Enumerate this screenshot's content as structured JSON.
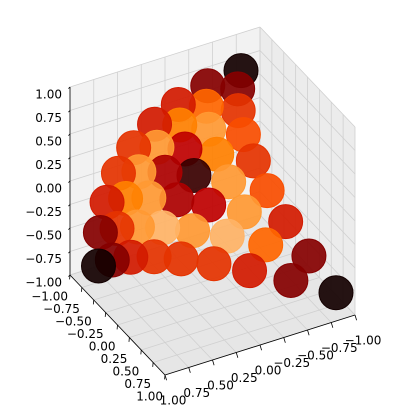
{
  "chart_data": {
    "type": "scatter3d",
    "colormap": "gist_heat",
    "grid": true,
    "x": [
      -0.8,
      -0.64,
      -0.45,
      -0.52,
      -0.31,
      -0.14,
      -0.45,
      -0.21,
      -0.03,
      0.11,
      -0.43,
      -0.17,
      0.04,
      0.21,
      0.33,
      -0.45,
      -0.17,
      0.07,
      0.25,
      0.4,
      0.49,
      -0.52,
      -0.21,
      0.04,
      0.25,
      0.42,
      0.54,
      0.61,
      -0.64,
      -0.31,
      -0.03,
      0.21,
      0.4,
      0.54,
      0.63,
      0.68,
      -0.8,
      -0.45,
      -0.14,
      0.11,
      0.33,
      0.49,
      0.61,
      0.68,
      0.7
    ],
    "y": [
      -1,
      -0.75,
      -1,
      -0.5,
      -0.75,
      -1,
      -0.25,
      -0.5,
      -0.75,
      -1,
      0,
      -0.25,
      -0.5,
      -0.75,
      -1,
      0.25,
      0,
      -0.25,
      -0.5,
      -0.75,
      -1,
      0.5,
      0.25,
      0,
      -0.25,
      -0.5,
      -0.75,
      -1,
      0.75,
      0.5,
      0.25,
      0,
      -0.25,
      -0.5,
      -0.75,
      -1,
      1,
      0.75,
      0.5,
      0.25,
      0,
      -0.25,
      -0.5,
      -0.75,
      -1
    ],
    "z": [
      0.6,
      0.59,
      0.55,
      0.53,
      0.51,
      0.45,
      0.43,
      0.43,
      0.4,
      0.32,
      0.29,
      0.31,
      0.3,
      0.24,
      0.14,
      0.1,
      0.15,
      0.16,
      0.12,
      0.04,
      -0.08,
      -0.12,
      -0.05,
      -0.03,
      -0.04,
      -0.1,
      -0.2,
      -0.35,
      -0.39,
      -0.3,
      -0.25,
      -0.25,
      -0.29,
      -0.37,
      -0.49,
      -0.65,
      -0.7,
      -0.59,
      -0.52,
      -0.5,
      -0.51,
      -0.57,
      -0.67,
      -0.81,
      -1
    ],
    "color_values": [
      0.05,
      0.35,
      0.35,
      0.6,
      0.7,
      0.55,
      0.65,
      0.8,
      0.75,
      0.55,
      0.6,
      0.75,
      0.5,
      0.8,
      0.6,
      0.65,
      0.8,
      0.15,
      0.45,
      0.8,
      0.6,
      0.55,
      0.8,
      0.5,
      0.45,
      0.8,
      0.75,
      0.55,
      0.35,
      0.7,
      0.85,
      0.8,
      0.85,
      0.8,
      0.6,
      0.35,
      0.05,
      0.35,
      0.55,
      0.6,
      0.6,
      0.6,
      0.55,
      0.35,
      0.05
    ],
    "xlim": [
      -1,
      1
    ],
    "ylim": [
      -1,
      1
    ],
    "zlim": [
      -1,
      1
    ],
    "xticks": [
      {
        "value": -1,
        "label": "−1.00"
      },
      {
        "value": -0.75,
        "label": "−0.75"
      },
      {
        "value": -0.5,
        "label": "−0.50"
      },
      {
        "value": -0.25,
        "label": "−0.25"
      },
      {
        "value": 0,
        "label": "0.00"
      },
      {
        "value": 0.25,
        "label": "0.25"
      },
      {
        "value": 0.5,
        "label": "0.50"
      },
      {
        "value": 0.75,
        "label": "0.75"
      },
      {
        "value": 1,
        "label": "1.00"
      }
    ],
    "yticks": [
      {
        "value": -1,
        "label": "−1.00"
      },
      {
        "value": -0.75,
        "label": "−0.75"
      },
      {
        "value": -0.5,
        "label": "−0.50"
      },
      {
        "value": -0.25,
        "label": "−0.25"
      },
      {
        "value": 0,
        "label": "0.00"
      },
      {
        "value": 0.25,
        "label": "0.25"
      },
      {
        "value": 0.5,
        "label": "0.50"
      },
      {
        "value": 0.75,
        "label": "0.75"
      },
      {
        "value": 1,
        "label": "1.00"
      }
    ],
    "zticks": [
      {
        "value": -1,
        "label": "−1.00"
      },
      {
        "value": -0.75,
        "label": "−0.75"
      },
      {
        "value": -0.5,
        "label": "−0.50"
      },
      {
        "value": -0.25,
        "label": "−0.25"
      },
      {
        "value": 0,
        "label": "0.00"
      },
      {
        "value": 0.25,
        "label": "0.25"
      },
      {
        "value": 0.5,
        "label": "0.50"
      },
      {
        "value": 0.75,
        "label": "0.75"
      },
      {
        "value": 1,
        "label": "1.00"
      }
    ]
  }
}
